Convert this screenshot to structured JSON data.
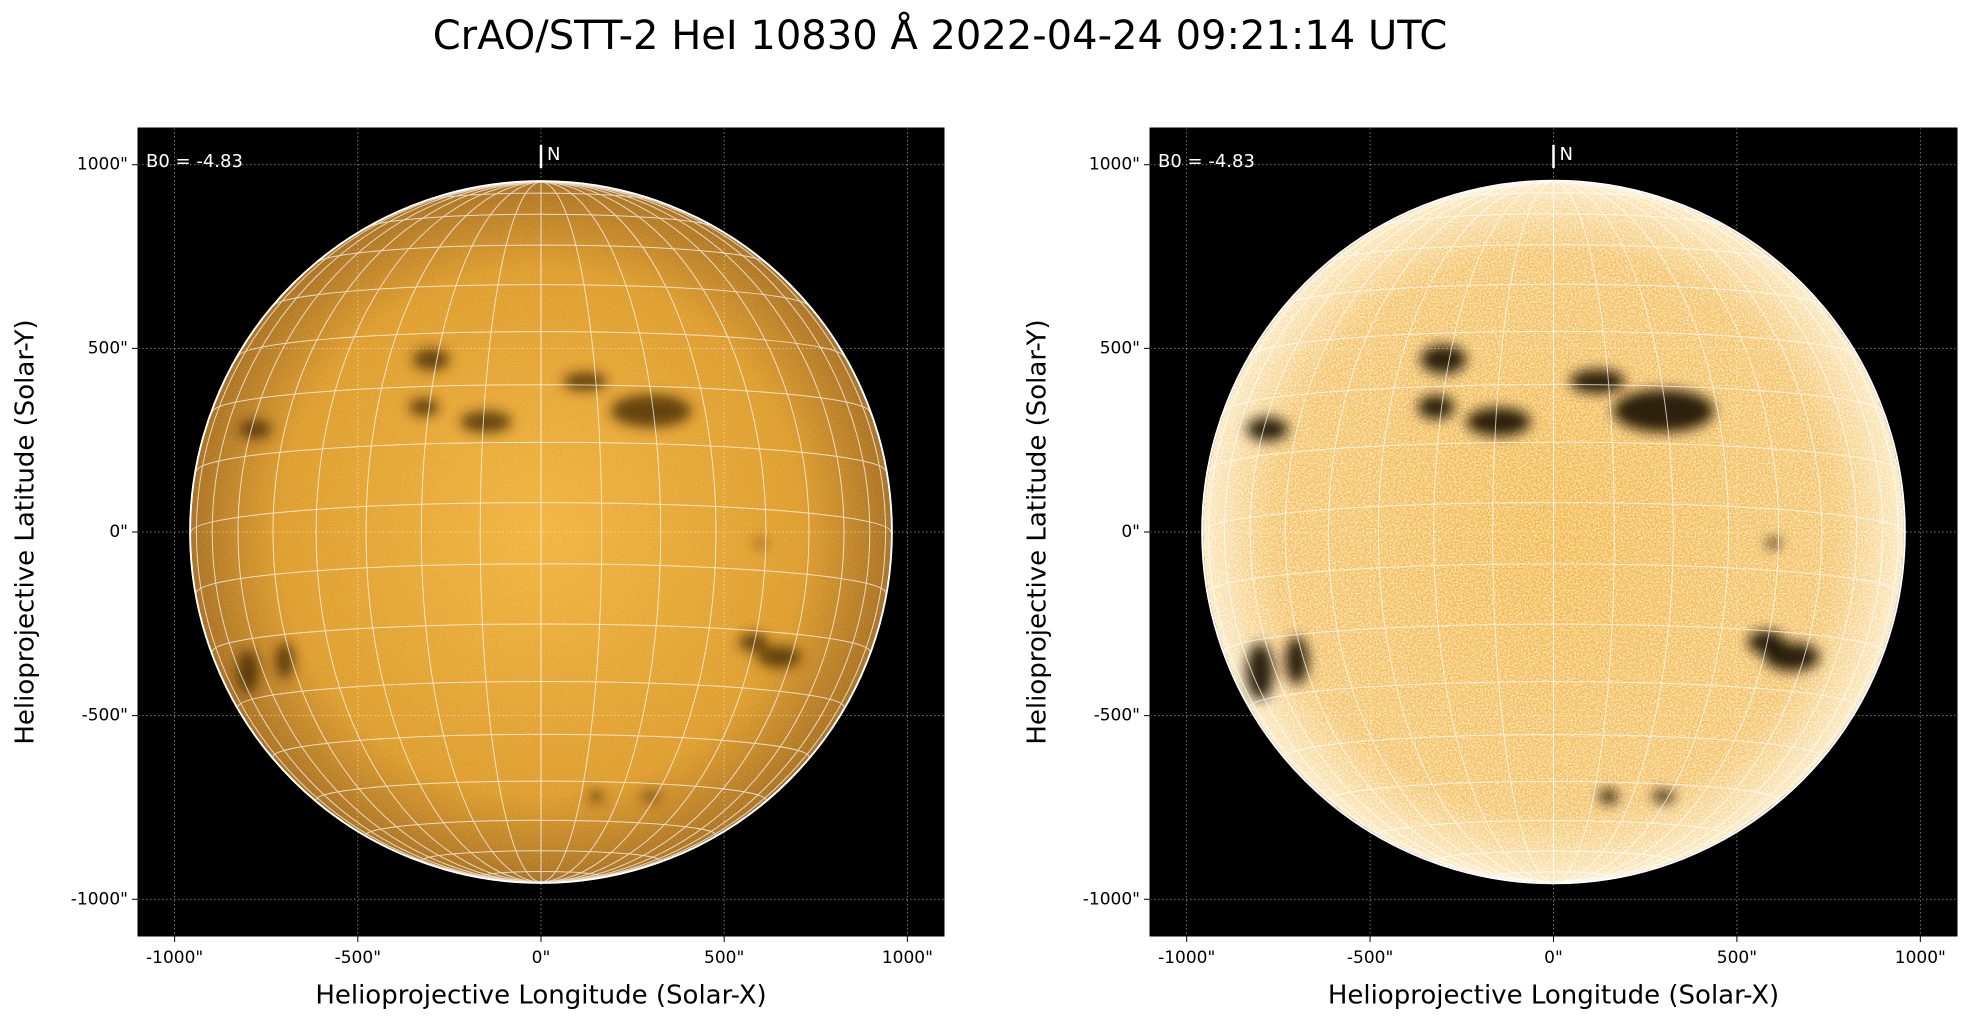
{
  "title": "CrAO/STT-2 HeI 10830 Å 2022-04-24 09:21:14 UTC",
  "chart_data": [
    {
      "type": "image",
      "xlabel": "Helioprojective Longitude (Solar-X)",
      "ylabel": "Helioprojective Latitude (Solar-Y)",
      "annotations": [
        "B0 = -4.83",
        "N"
      ],
      "xlim": [
        -1100,
        1100
      ],
      "ylim": [
        -1100,
        1100
      ],
      "xticks": [
        {
          "value": -1000,
          "label": "-1000\""
        },
        {
          "value": -500,
          "label": "-500\""
        },
        {
          "value": 0,
          "label": "0\""
        },
        {
          "value": 500,
          "label": "500\""
        },
        {
          "value": 1000,
          "label": "1000\""
        }
      ],
      "yticks": [
        {
          "value": -1000,
          "label": "-1000\""
        },
        {
          "value": -500,
          "label": "-500\""
        },
        {
          "value": 0,
          "label": "0\""
        },
        {
          "value": 500,
          "label": "500\""
        },
        {
          "value": 1000,
          "label": "1000\""
        }
      ],
      "grid": true
    },
    {
      "type": "image",
      "xlabel": "Helioprojective Longitude (Solar-X)",
      "ylabel": "Helioprojective Latitude (Solar-Y)",
      "annotations": [
        "B0 = -4.83",
        "N"
      ],
      "xlim": [
        -1100,
        1100
      ],
      "ylim": [
        -1100,
        1100
      ],
      "xticks": [
        {
          "value": -1000,
          "label": "-1000\""
        },
        {
          "value": -500,
          "label": "-500\""
        },
        {
          "value": 0,
          "label": "0\""
        },
        {
          "value": 500,
          "label": "500\""
        },
        {
          "value": 1000,
          "label": "1000\""
        }
      ],
      "yticks": [
        {
          "value": -1000,
          "label": "-1000\""
        },
        {
          "value": -500,
          "label": "-500\""
        },
        {
          "value": 0,
          "label": "0\""
        },
        {
          "value": 500,
          "label": "500\""
        },
        {
          "value": 1000,
          "label": "1000\""
        }
      ],
      "grid": true
    }
  ]
}
